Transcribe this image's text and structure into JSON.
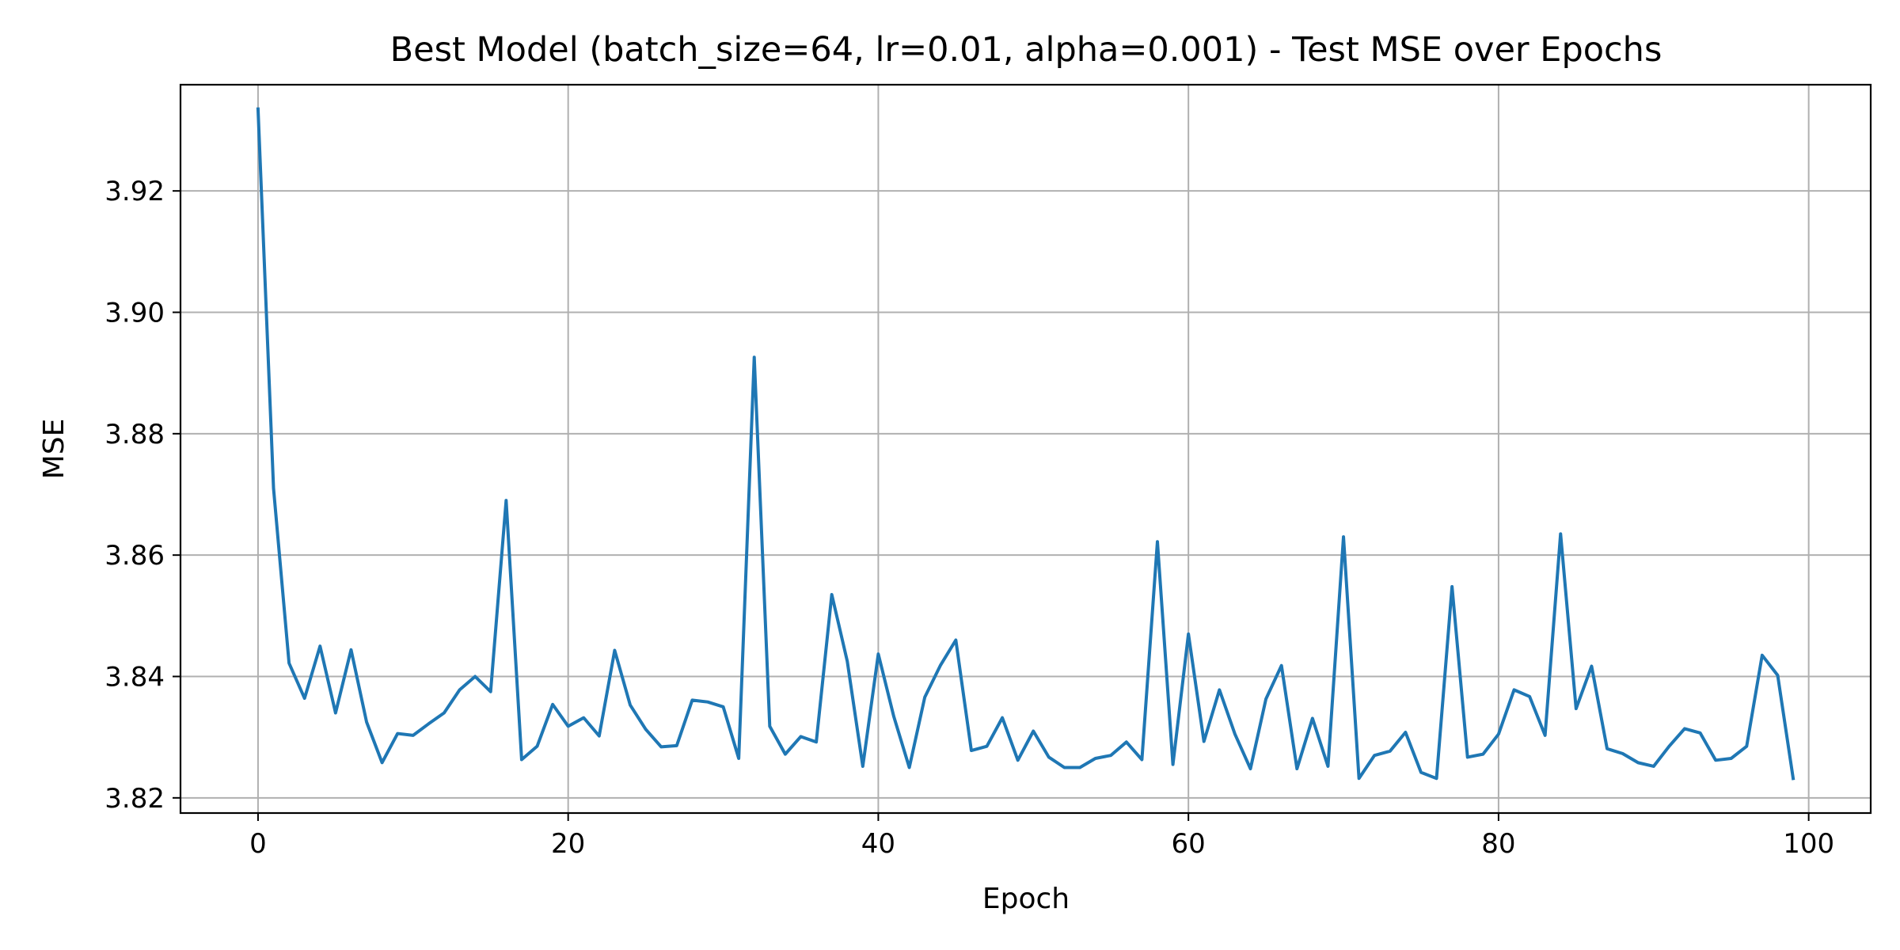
{
  "chart_data": {
    "type": "line",
    "title": "Best Model (batch_size=64, lr=0.01, alpha=0.001) - Test MSE over Epochs",
    "xlabel": "Epoch",
    "ylabel": "MSE",
    "xlim": [
      -5,
      104
    ],
    "ylim": [
      3.8175,
      3.9375
    ],
    "xticks": [
      0,
      20,
      40,
      60,
      80,
      100
    ],
    "yticks": [
      3.82,
      3.84,
      3.86,
      3.88,
      3.9,
      3.92
    ],
    "xtick_labels": [
      "0",
      "20",
      "40",
      "60",
      "80",
      "100"
    ],
    "ytick_labels": [
      "3.82",
      "3.84",
      "3.86",
      "3.88",
      "3.90",
      "3.92"
    ],
    "grid": true,
    "legend": "none",
    "series": [
      {
        "color": "#1f77b4",
        "x": [
          0,
          1,
          2,
          3,
          4,
          5,
          6,
          7,
          8,
          9,
          10,
          11,
          12,
          13,
          14,
          15,
          16,
          17,
          18,
          19,
          20,
          21,
          22,
          23,
          24,
          25,
          26,
          27,
          28,
          29,
          30,
          31,
          32,
          33,
          34,
          35,
          36,
          37,
          38,
          39,
          40,
          41,
          42,
          43,
          44,
          45,
          46,
          47,
          48,
          49,
          50,
          51,
          52,
          53,
          54,
          55,
          56,
          57,
          58,
          59,
          60,
          61,
          62,
          63,
          64,
          65,
          66,
          67,
          68,
          69,
          70,
          71,
          72,
          73,
          74,
          75,
          76,
          77,
          78,
          79,
          80,
          81,
          82,
          83,
          84,
          85,
          86,
          87,
          88,
          89,
          90,
          91,
          92,
          93,
          94,
          95,
          96,
          97,
          98,
          99
        ],
        "values": [
          3.9335,
          3.871,
          3.8422,
          3.8364,
          3.845,
          3.834,
          3.8444,
          3.8325,
          3.8258,
          3.8306,
          3.8303,
          3.8322,
          3.834,
          3.8378,
          3.84,
          3.8375,
          3.869,
          3.8263,
          3.8285,
          3.8354,
          3.8318,
          3.8332,
          3.8302,
          3.8443,
          3.8353,
          3.8313,
          3.8284,
          3.8286,
          3.8361,
          3.8358,
          3.835,
          3.8265,
          3.8926,
          3.8318,
          3.8272,
          3.8301,
          3.8292,
          3.8535,
          3.8425,
          3.8252,
          3.8437,
          3.8334,
          3.825,
          3.8366,
          3.8418,
          3.846,
          3.8278,
          3.8285,
          3.8332,
          3.8262,
          3.831,
          3.8267,
          3.825,
          3.825,
          3.8265,
          3.827,
          3.8292,
          3.8263,
          3.8622,
          3.8255,
          3.847,
          3.8293,
          3.8378,
          3.8305,
          3.8248,
          3.8363,
          3.8418,
          3.8248,
          3.8331,
          3.8252,
          3.863,
          3.8232,
          3.827,
          3.8277,
          3.8308,
          3.8242,
          3.8232,
          3.8548,
          3.8267,
          3.8272,
          3.8305,
          3.8378,
          3.8367,
          3.8303,
          3.8635,
          3.8347,
          3.8417,
          3.8281,
          3.8273,
          3.8258,
          3.8252,
          3.8285,
          3.8314,
          3.8307,
          3.8262,
          3.8265,
          3.8285,
          3.8435,
          3.8402,
          3.8232
        ]
      }
    ]
  }
}
